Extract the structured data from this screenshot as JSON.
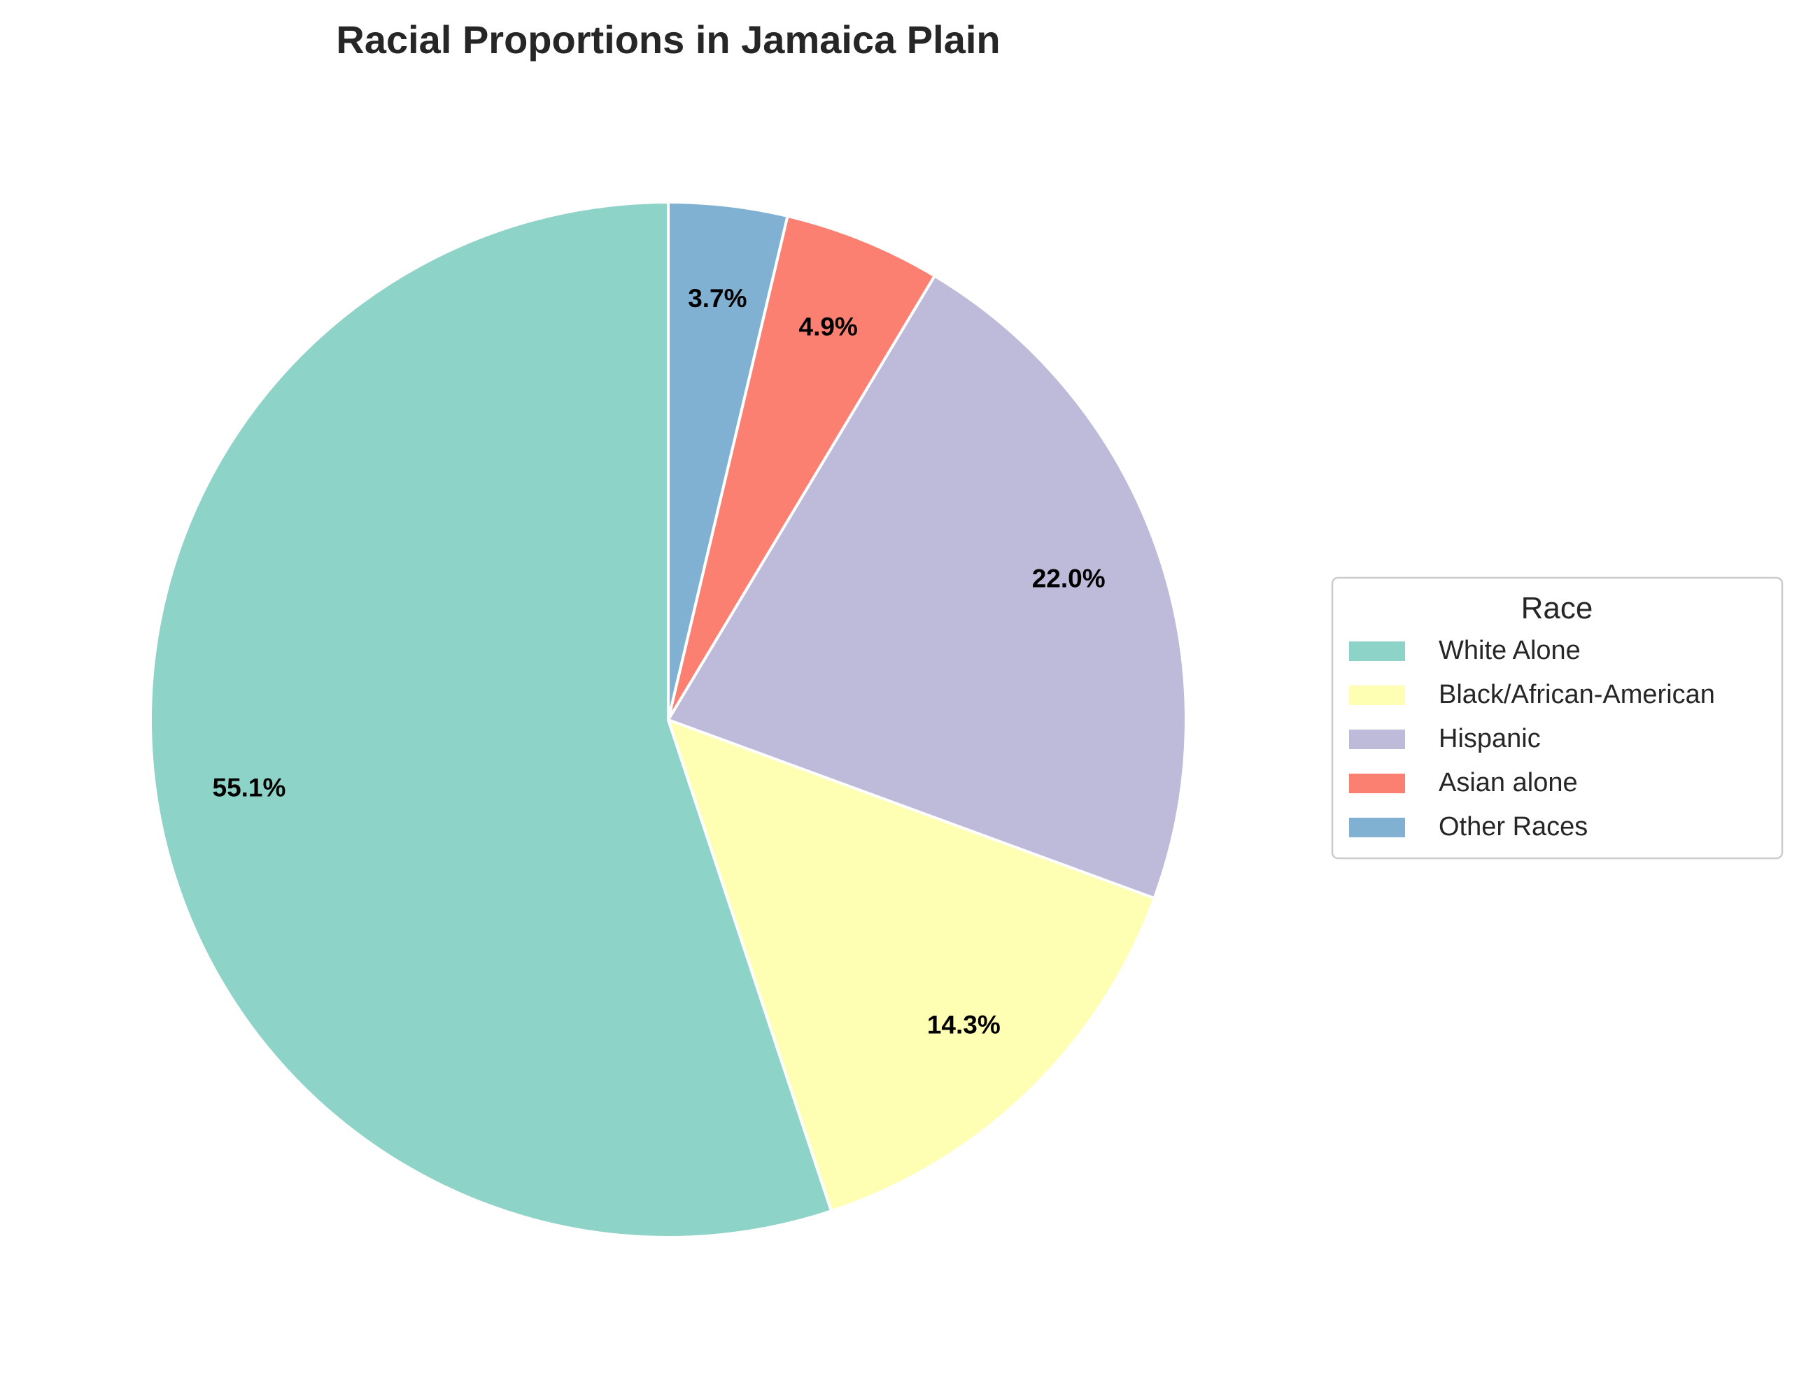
{
  "chart_data": {
    "type": "pie",
    "title": "Racial Proportions in Jamaica Plain",
    "legend_title": "Race",
    "legend_placement": "center-right",
    "start_angle_deg": 90,
    "direction": "counterclockwise",
    "categories": [
      "White Alone",
      "Black/African-American",
      "Hispanic",
      "Asian alone",
      "Other Races"
    ],
    "values": [
      55.1,
      14.3,
      22.0,
      4.9,
      3.7
    ],
    "labels": [
      "55.1%",
      "14.3%",
      "22.0%",
      "4.9%",
      "3.7%"
    ],
    "colors": [
      "#8dd3c7",
      "#ffffb3",
      "#bebada",
      "#fb8072",
      "#80b1d3"
    ]
  }
}
